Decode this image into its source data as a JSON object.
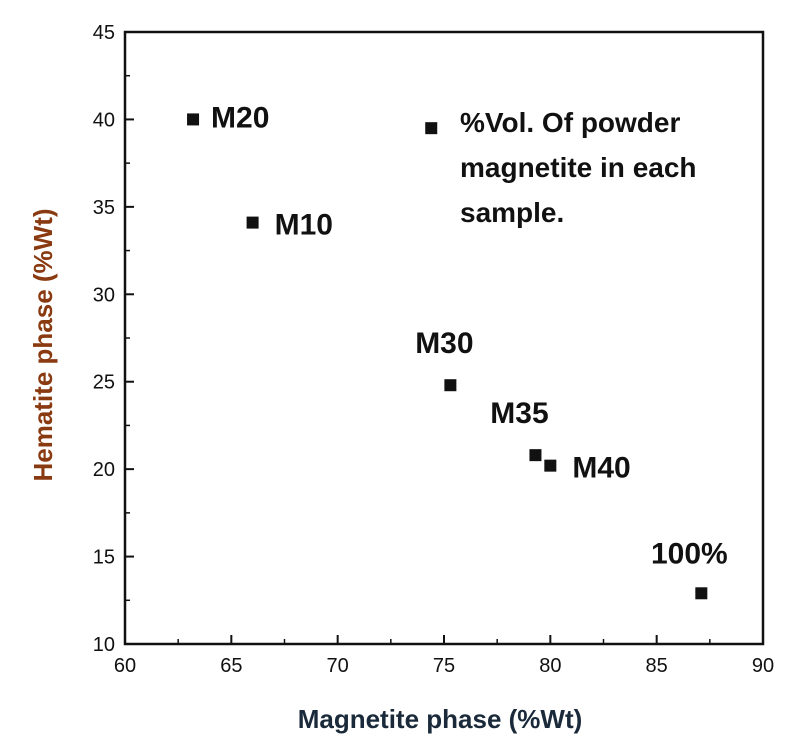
{
  "chart_data": {
    "type": "scatter",
    "xlabel": "Magnetite phase (%Wt)",
    "ylabel": "Hematite phase (%Wt)",
    "xlim": [
      60,
      90
    ],
    "ylim": [
      10,
      45
    ],
    "xticks": [
      60,
      65,
      70,
      75,
      80,
      85,
      90
    ],
    "yticks": [
      10,
      15,
      20,
      25,
      30,
      35,
      40,
      45
    ],
    "grid": false,
    "legend": {
      "placement": "top-right",
      "lines": [
        "%Vol. Of powder",
        "magnetite in each",
        "sample."
      ]
    },
    "points": [
      {
        "label": "M20",
        "x": 63.2,
        "y": 40.0
      },
      {
        "label": "M10",
        "x": 66.0,
        "y": 34.1
      },
      {
        "label": "M30",
        "x": 75.3,
        "y": 24.8
      },
      {
        "label": "M35",
        "x": 79.3,
        "y": 20.8
      },
      {
        "label": "M40",
        "x": 80.0,
        "y": 20.2
      },
      {
        "label": "100%",
        "x": 87.1,
        "y": 12.9
      }
    ],
    "colors": {
      "marker": "#111111",
      "axis": "#111111",
      "xlabel": "#1a2a3a",
      "ylabel": "#8a3a10"
    }
  }
}
